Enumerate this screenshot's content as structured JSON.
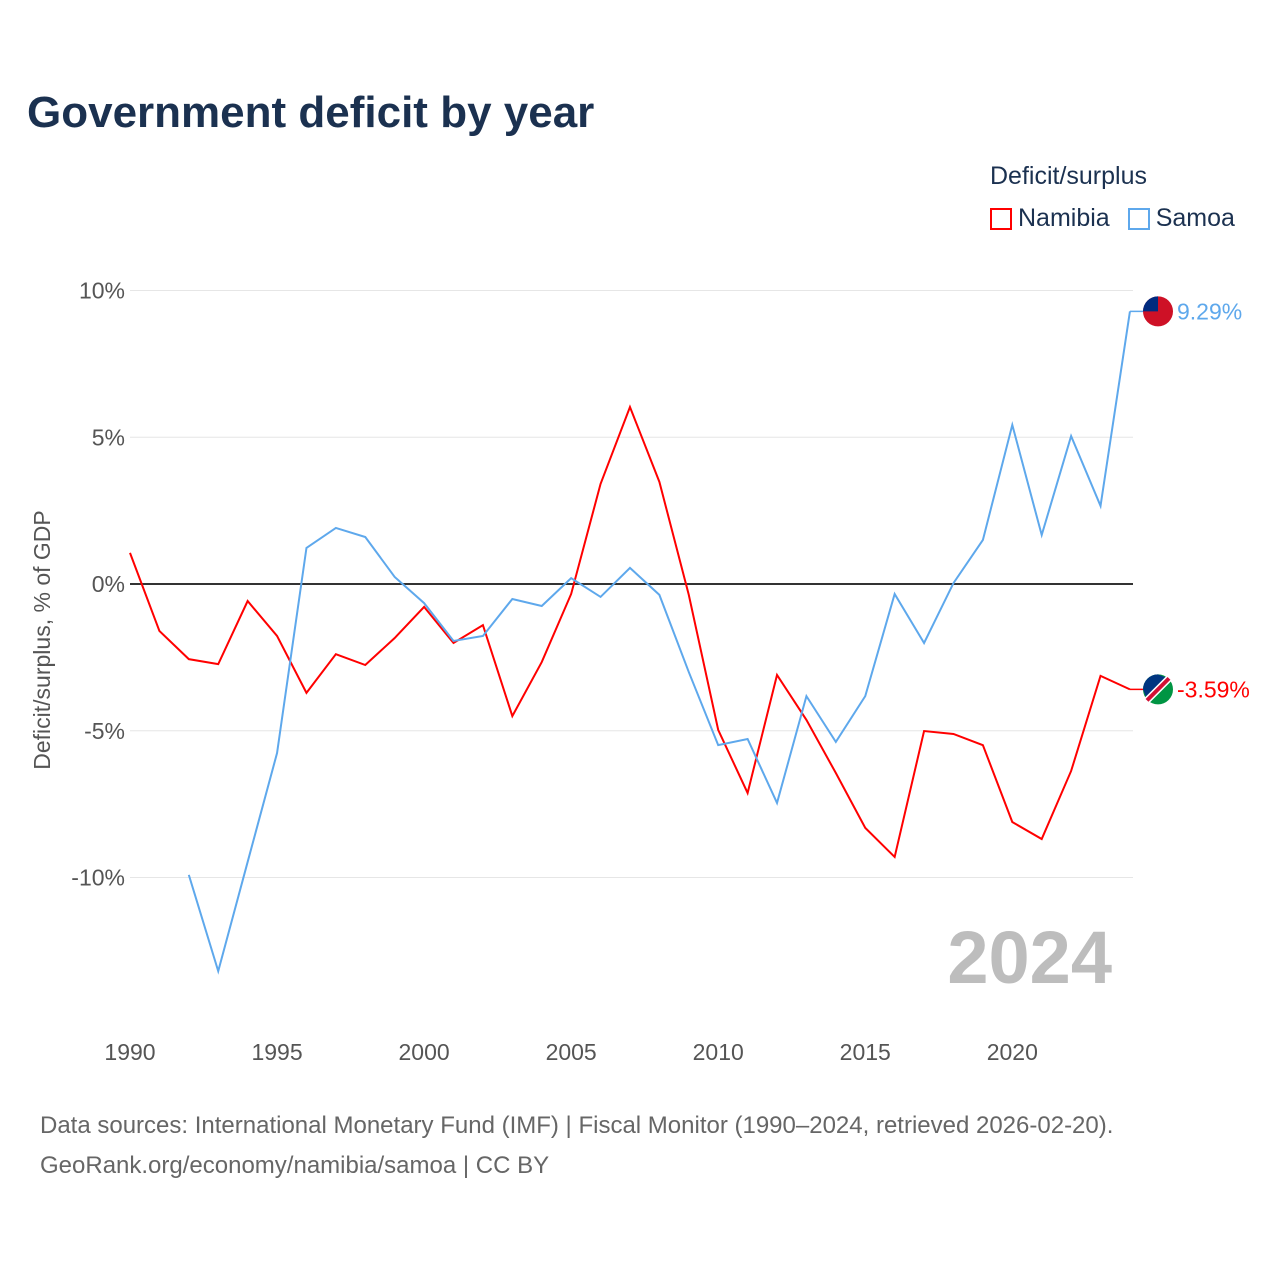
{
  "chart_data": {
    "type": "line",
    "title": "Government deficit by year",
    "ylabel": "Deficit/surplus, % of GDP",
    "xlabel": "",
    "legend_title": "Deficit/surplus",
    "legend_position": "top-right",
    "year_watermark": "2024",
    "ylim": [
      -13.5,
      10
    ],
    "xlim": [
      1990,
      2024
    ],
    "y_ticks": [
      {
        "v": 10,
        "label": "10%"
      },
      {
        "v": 5,
        "label": "5%"
      },
      {
        "v": 0,
        "label": "0%"
      },
      {
        "v": -5,
        "label": "-5%"
      },
      {
        "v": -10,
        "label": "-10%"
      }
    ],
    "x_ticks": [
      {
        "v": 1990,
        "label": "1990"
      },
      {
        "v": 1995,
        "label": "1995"
      },
      {
        "v": 2000,
        "label": "2000"
      },
      {
        "v": 2005,
        "label": "2005"
      },
      {
        "v": 2010,
        "label": "2010"
      },
      {
        "v": 2015,
        "label": "2015"
      },
      {
        "v": 2020,
        "label": "2020"
      }
    ],
    "series": [
      {
        "name": "Namibia",
        "color": "#ff0000",
        "end_label": "-3.59%",
        "start_year": 1990,
        "values": [
          1.06,
          -1.6,
          -2.56,
          -2.73,
          -0.58,
          -1.77,
          -3.71,
          -2.39,
          -2.76,
          -1.84,
          -0.78,
          -2.01,
          -1.4,
          -4.5,
          -2.66,
          -0.34,
          3.41,
          6.03,
          3.48,
          -0.37,
          -4.97,
          -7.12,
          -3.1,
          -4.63,
          -6.44,
          -8.31,
          -9.3,
          -5.01,
          -5.11,
          -5.49,
          -8.11,
          -8.69,
          -6.37,
          -3.13,
          -3.59
        ]
      },
      {
        "name": "Samoa",
        "color": "#5ea8ec",
        "end_label": "9.29%",
        "start_year": 1992,
        "values": [
          -9.91,
          -13.19,
          -9.47,
          -5.76,
          1.23,
          1.91,
          1.6,
          0.24,
          -0.65,
          -1.94,
          -1.77,
          -0.51,
          -0.75,
          0.2,
          -0.44,
          0.55,
          -0.37,
          -3.0,
          -5.49,
          -5.28,
          -7.46,
          -3.82,
          -5.38,
          -3.82,
          -0.34,
          -2.01,
          0.03,
          1.5,
          5.42,
          1.67,
          5.04,
          2.66,
          9.29
        ]
      }
    ]
  },
  "footer": {
    "line1": "Data sources: International Monetary Fund (IMF) | Fiscal Monitor (1990–2024, retrieved 2026-02-20).",
    "line2": "GeoRank.org/economy/namibia/samoa | CC BY"
  }
}
